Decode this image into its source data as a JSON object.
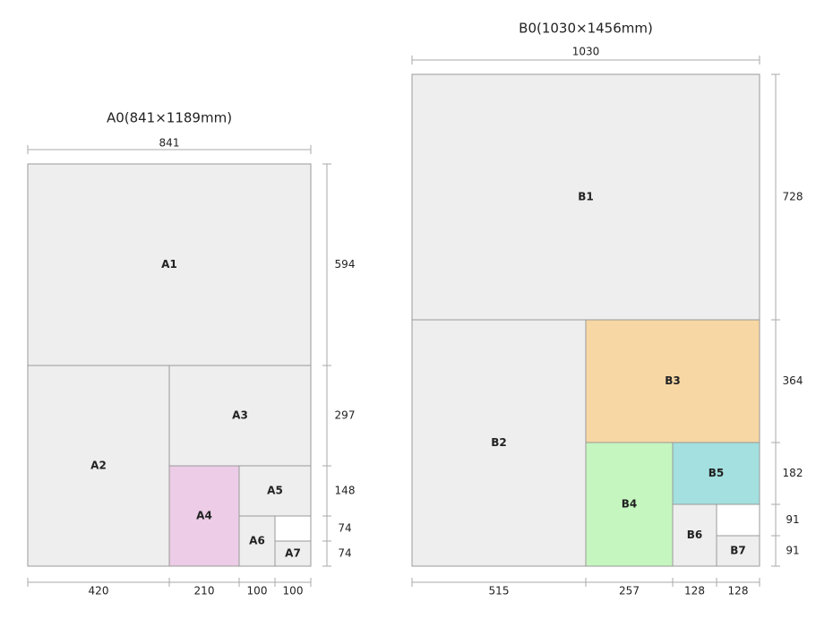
{
  "a_series": {
    "title": "A0(841×1189mm)",
    "width_label": 841,
    "sheets": [
      {
        "label": "A1"
      },
      {
        "label": "A2"
      },
      {
        "label": "A3"
      },
      {
        "label": "A4"
      },
      {
        "label": "A5"
      },
      {
        "label": "A6"
      },
      {
        "label": "A7"
      }
    ],
    "side_dims": [
      594,
      297,
      148,
      74,
      74
    ],
    "bottom_dims": [
      420,
      210,
      100,
      100
    ]
  },
  "b_series": {
    "title": "B0(1030×1456mm)",
    "width_label": 1030,
    "sheets": [
      {
        "label": "B1"
      },
      {
        "label": "B2"
      },
      {
        "label": "B3"
      },
      {
        "label": "B4"
      },
      {
        "label": "B5"
      },
      {
        "label": "B6"
      },
      {
        "label": "B7"
      }
    ],
    "side_dims": [
      728,
      364,
      182,
      91,
      91
    ],
    "bottom_dims": [
      515,
      257,
      128,
      128
    ]
  }
}
